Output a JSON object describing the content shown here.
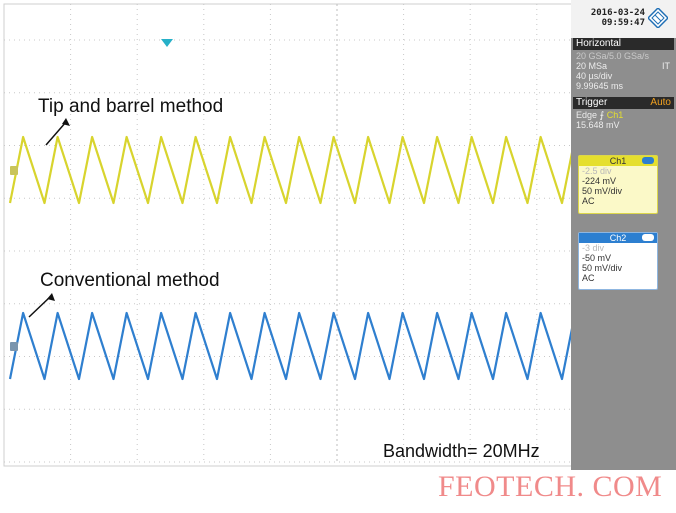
{
  "scope": {
    "timestamp": {
      "date": "2016-03-24",
      "time": "09:59:47"
    },
    "horizontal": {
      "title": "Horizontal",
      "sample_rate": "20 GSa/5.0 GSa/s",
      "record_length": "20 MSa",
      "record_tag": "IT",
      "time_scale": "40 µs/div",
      "position": "9.99645 ms"
    },
    "trigger": {
      "title": "Trigger",
      "mode": "Auto",
      "type": "Edge",
      "source": "Ch1",
      "level": "15.648 mV"
    },
    "ch1": {
      "title": "Ch1",
      "offset_div": "-2.5 div",
      "offset": "-224 mV",
      "scale": "50 mV/div",
      "coupling": "AC",
      "color": "#d8d42e"
    },
    "ch2": {
      "title": "Ch2",
      "offset_div": "-3 div",
      "offset": "-50 mV",
      "scale": "50 mV/div",
      "coupling": "AC",
      "color": "#2f7fcf"
    },
    "trigger_marker_color": "#26b0c8"
  },
  "annotations": {
    "tip_barrel": "Tip and barrel method",
    "conventional": "Conventional method",
    "bandwidth": "Bandwidth=  20MHz"
  },
  "watermark": "FEOTECH. COM"
}
